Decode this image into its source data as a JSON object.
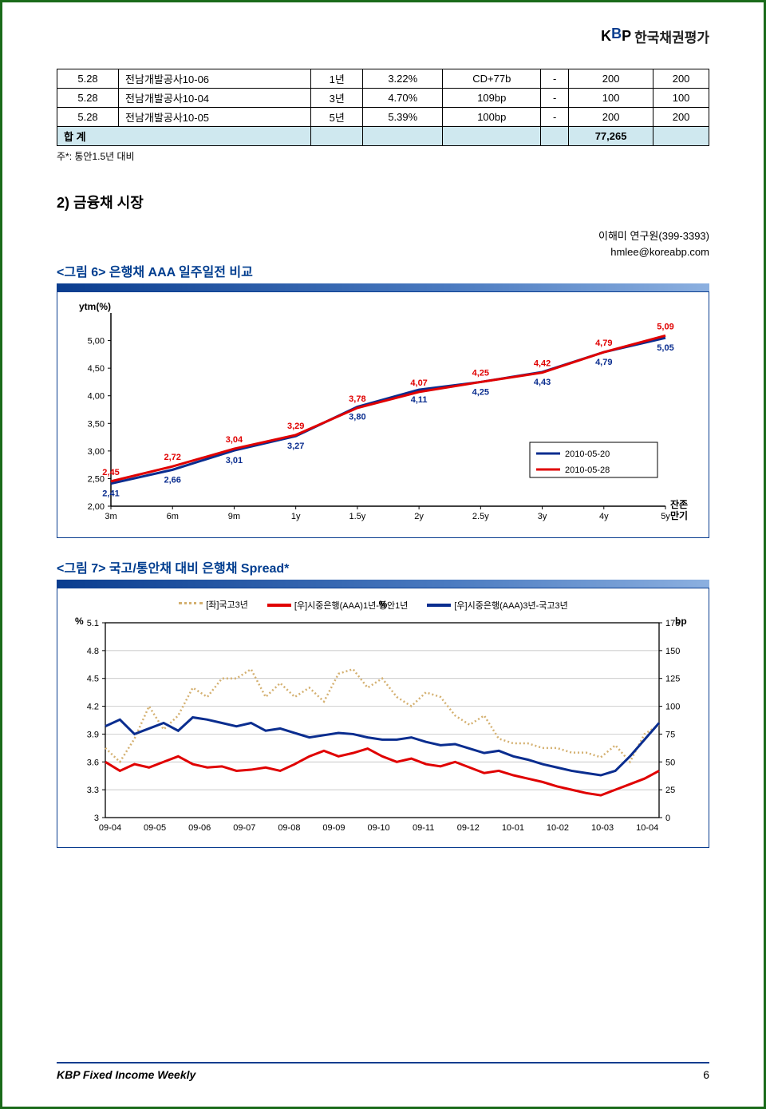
{
  "header": {
    "logo_text": "한국채권평가"
  },
  "table": {
    "rows": [
      {
        "c0": "5.28",
        "c1": "전남개발공사10-06",
        "c2": "1년",
        "c3": "3.22%",
        "c4": "CD+77b",
        "c5": "-",
        "c6": "200",
        "c7": "200"
      },
      {
        "c0": "5.28",
        "c1": "전남개발공사10-04",
        "c2": "3년",
        "c3": "4.70%",
        "c4": "109bp",
        "c5": "-",
        "c6": "100",
        "c7": "100"
      },
      {
        "c0": "5.28",
        "c1": "전남개발공사10-05",
        "c2": "5년",
        "c3": "5.39%",
        "c4": "100bp",
        "c5": "-",
        "c6": "200",
        "c7": "200"
      }
    ],
    "total_label": "합  계",
    "total_value": "77,265",
    "footnote": "주*: 통안1.5년 대비"
  },
  "section2_title": "2) 금융채 시장",
  "author": {
    "line1": "이해미 연구원(399-3393)",
    "line2": "hmlee@koreabp.com"
  },
  "chart6": {
    "title": "<그림 6> 은행채 AAA 일주일전 비교",
    "y_label": "ytm(%)",
    "x_end_label1": "잔존",
    "x_end_label2": "만기",
    "x_categories": [
      "3m",
      "6m",
      "9m",
      "1y",
      "1.5y",
      "2y",
      "2.5y",
      "3y",
      "4y",
      "5y"
    ],
    "y_min": 2.0,
    "y_max": 5.5,
    "y_step": 0.5,
    "y_ticks": [
      "2.00",
      "2.50",
      "3.00",
      "3.50",
      "4.00",
      "4.50",
      "5.00"
    ],
    "series": [
      {
        "name": "2010-05-20",
        "color": "#0a2d8f",
        "values": [
          2.41,
          2.66,
          3.01,
          3.27,
          3.8,
          4.11,
          4.25,
          4.43,
          4.79,
          5.05
        ]
      },
      {
        "name": "2010-05-28",
        "color": "#e00000",
        "values": [
          2.45,
          2.72,
          3.04,
          3.29,
          3.78,
          4.07,
          4.25,
          4.42,
          4.79,
          5.09
        ]
      }
    ],
    "point_labels": {
      "red_top": [
        "2.45",
        "2.72",
        "3.04",
        "3.29",
        "3.78",
        "4.07",
        "4.25",
        "4.42",
        "4.79",
        "5.09"
      ],
      "blue_bot": [
        "2.41",
        "2.66",
        "3.01",
        "3.27",
        "3.80",
        "4.11",
        "4.25",
        "4.43",
        "4.79",
        "5.05"
      ]
    },
    "legend": [
      "2010-05-20",
      "2010-05-28"
    ],
    "legend_colors": [
      "#0a2d8f",
      "#e00000"
    ],
    "line_width": 3,
    "background_color": "#ffffff",
    "axis_color": "#000000",
    "label_font_size": 11
  },
  "chart7": {
    "title": "<그림 7> 국고/통안채 대비 은행채 Spread*",
    "left_unit": "%",
    "right_unit": "bp",
    "left_min": 3.0,
    "left_max": 5.1,
    "left_step": 0.3,
    "left_ticks": [
      "3",
      "3.3",
      "3.6",
      "3.9",
      "4.2",
      "4.5",
      "4.8",
      "5.1"
    ],
    "right_min": 0,
    "right_max": 175,
    "right_step": 25,
    "right_ticks": [
      "0",
      "25",
      "50",
      "75",
      "100",
      "125",
      "150",
      "175"
    ],
    "x_labels": [
      "09-04",
      "09-05",
      "09-06",
      "09-07",
      "09-08",
      "09-09",
      "09-10",
      "09-11",
      "09-12",
      "10-01",
      "10-02",
      "10-03",
      "10-04"
    ],
    "legend": [
      {
        "label": "[좌]국고3년",
        "color": "#d4b070",
        "style": "dotted"
      },
      {
        "label": "[우]시중은행(AAA)1년-통안1년",
        "color": "#e00000",
        "style": "solid"
      },
      {
        "label": "[우]시중은행(AAA)3년-국고3년",
        "color": "#0a2d8f",
        "style": "solid"
      }
    ],
    "series_left_gukgo": {
      "color": "#d4b070",
      "values": [
        3.75,
        3.6,
        3.85,
        4.2,
        3.95,
        4.1,
        4.4,
        4.3,
        4.5,
        4.5,
        4.6,
        4.3,
        4.45,
        4.3,
        4.4,
        4.25,
        4.55,
        4.6,
        4.4,
        4.5,
        4.3,
        4.2,
        4.35,
        4.3,
        4.1,
        4.0,
        4.1,
        3.85,
        3.8,
        3.8,
        3.75,
        3.75,
        3.7,
        3.7,
        3.65,
        3.78,
        3.6,
        3.9,
        4.0
      ]
    },
    "series_red": {
      "color": "#e00000",
      "values": [
        50,
        42,
        48,
        45,
        50,
        55,
        48,
        45,
        46,
        42,
        43,
        45,
        42,
        48,
        55,
        60,
        55,
        58,
        62,
        55,
        50,
        53,
        48,
        46,
        50,
        45,
        40,
        42,
        38,
        35,
        32,
        28,
        25,
        22,
        20,
        25,
        30,
        35,
        42
      ]
    },
    "series_blue": {
      "color": "#0a2d8f",
      "values": [
        82,
        88,
        75,
        80,
        85,
        78,
        90,
        88,
        85,
        82,
        85,
        78,
        80,
        76,
        72,
        74,
        76,
        75,
        72,
        70,
        70,
        72,
        68,
        65,
        66,
        62,
        58,
        60,
        55,
        52,
        48,
        45,
        42,
        40,
        38,
        42,
        55,
        70,
        85
      ]
    },
    "line_width": 3,
    "background_color": "#ffffff",
    "grid_color": "#b8b8b8",
    "axis_color": "#000000"
  },
  "footer": {
    "title": "KBP Fixed Income Weekly",
    "page": "6"
  }
}
